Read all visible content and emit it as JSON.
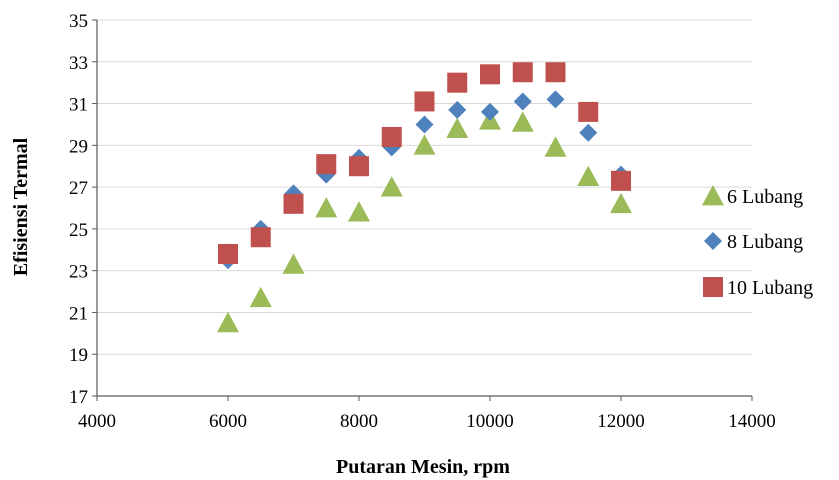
{
  "chart_data": {
    "type": "scatter",
    "title": "",
    "xlabel": "Putaran Mesin, rpm",
    "ylabel": "Efisiensi Termal",
    "xlim": [
      4000,
      14000
    ],
    "ylim": [
      17,
      35
    ],
    "xticks": [
      "4000",
      "6000",
      "8000",
      "10000",
      "12000",
      "14000"
    ],
    "yticks": [
      "17",
      "19",
      "21",
      "23",
      "25",
      "27",
      "29",
      "31",
      "33",
      "35"
    ],
    "grid": "horizontal",
    "legend_position": "right",
    "series": [
      {
        "name": "6 Lubang",
        "marker": "triangle",
        "color": "#9BBB59",
        "x": [
          6000,
          6500,
          7000,
          7500,
          8000,
          8500,
          9000,
          9500,
          10000,
          10500,
          11000,
          11500,
          12000
        ],
        "y": [
          20.5,
          21.7,
          23.3,
          26.0,
          25.8,
          27.0,
          29.0,
          29.8,
          30.2,
          30.1,
          28.9,
          27.5,
          26.2
        ]
      },
      {
        "name": "8 Lubang",
        "marker": "diamond",
        "color": "#4F81BD",
        "x": [
          6000,
          6500,
          7000,
          7500,
          8000,
          8500,
          9000,
          9500,
          10000,
          10500,
          11000,
          11500,
          12000
        ],
        "y": [
          23.5,
          25.0,
          26.7,
          27.6,
          28.4,
          28.9,
          30.0,
          30.7,
          30.6,
          31.1,
          31.2,
          29.6,
          27.6
        ]
      },
      {
        "name": "10 Lubang",
        "marker": "square",
        "color": "#C0504D",
        "x": [
          6000,
          6500,
          7000,
          7500,
          8000,
          8500,
          9000,
          9500,
          10000,
          10500,
          11000,
          11500,
          12000
        ],
        "y": [
          23.8,
          24.6,
          26.2,
          28.1,
          28.0,
          29.4,
          31.1,
          32.0,
          32.4,
          32.5,
          32.5,
          30.6,
          27.3
        ]
      }
    ]
  }
}
